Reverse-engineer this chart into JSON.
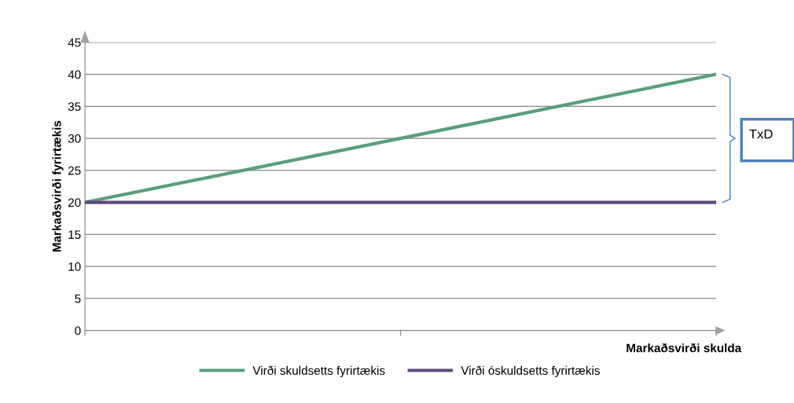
{
  "chart_data": {
    "type": "line",
    "xlabel": "Markaðsvirði skulda",
    "ylabel": "Markaðsvirði fyrirtækis",
    "categories": [
      null,
      null,
      null
    ],
    "series": [
      {
        "name": "Virði skuldsetts fyrirtækis",
        "color": "#5a9e7c",
        "values": [
          20,
          30,
          40
        ]
      },
      {
        "name": "Virði óskuldsetts fyrirtækis",
        "color": "#604a7b",
        "values": [
          20,
          20,
          20
        ]
      }
    ],
    "ylim": [
      0,
      45
    ],
    "yticks": [
      0,
      5,
      10,
      15,
      20,
      25,
      30,
      35,
      40,
      45
    ],
    "grid": "y",
    "legend": "bottom",
    "annotations": [
      "TxD"
    ]
  }
}
